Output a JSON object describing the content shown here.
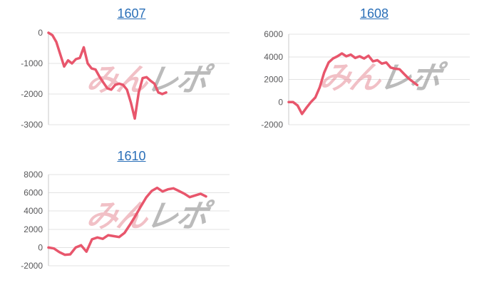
{
  "colors": {
    "line": "#e8566c",
    "grid": "#e3e3e3",
    "axis": "#c8c8c8",
    "tick_label": "#58585a",
    "title_link": "#2a6fb8",
    "wm_pink": "#de6e7c6e",
    "wm_gray": "#69696973"
  },
  "watermark": {
    "pink": "みん",
    "gray": "レポ"
  },
  "chart_data": [
    {
      "type": "line",
      "title": "1607",
      "xlabel": "",
      "ylabel": "",
      "yticks": [
        0,
        -1000,
        -2000,
        -3000
      ],
      "ylim": [
        -3000,
        0
      ],
      "grid": true,
      "legend": false,
      "x_fill": 0.65,
      "values": [
        0,
        -80,
        -300,
        -700,
        -1100,
        -900,
        -1000,
        -860,
        -820,
        -475,
        -1000,
        -1165,
        -1200,
        -1430,
        -1625,
        -1815,
        -1855,
        -1700,
        -1660,
        -1700,
        -1855,
        -2280,
        -2800,
        -1950,
        -1480,
        -1450,
        -1565,
        -1660,
        -1950,
        -2000,
        -1950
      ]
    },
    {
      "type": "line",
      "title": "1608",
      "xlabel": "",
      "ylabel": "",
      "yticks": [
        6000,
        4000,
        2000,
        0,
        -2000
      ],
      "ylim": [
        -2000,
        6000
      ],
      "grid": true,
      "legend": false,
      "x_fill": 0.71,
      "values": [
        0,
        0,
        -300,
        -1050,
        -500,
        0,
        400,
        1300,
        2600,
        3500,
        3850,
        4050,
        4300,
        4050,
        4200,
        3900,
        4050,
        3850,
        4100,
        3600,
        3700,
        3400,
        3500,
        3050,
        2950,
        2900,
        2500,
        2100,
        1800,
        1500
      ]
    },
    {
      "type": "line",
      "title": "1610",
      "xlabel": "",
      "ylabel": "",
      "yticks": [
        8000,
        6000,
        4000,
        2000,
        0,
        -2000
      ],
      "ylim": [
        -2000,
        8000
      ],
      "grid": true,
      "legend": false,
      "x_fill": 0.87,
      "values": [
        0,
        -100,
        -500,
        -800,
        -750,
        0,
        250,
        -450,
        900,
        1100,
        950,
        1350,
        1250,
        1150,
        1600,
        2500,
        3450,
        4500,
        5500,
        6200,
        6550,
        6150,
        6380,
        6490,
        6200,
        5910,
        5520,
        5710,
        5900,
        5600
      ]
    }
  ]
}
